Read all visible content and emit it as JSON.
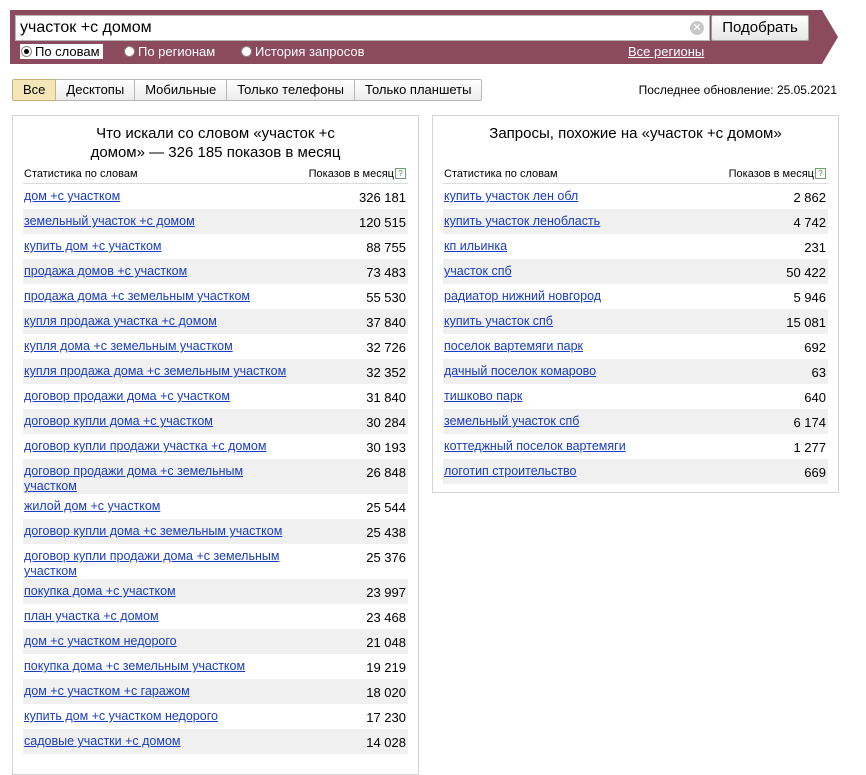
{
  "search": {
    "query": "участок +с домом",
    "button_label": "Подобрать",
    "radios": [
      {
        "label": "По словам",
        "selected": true
      },
      {
        "label": "По регионам",
        "selected": false
      },
      {
        "label": "История запросов",
        "selected": false
      }
    ],
    "all_regions_link": "Все регионы"
  },
  "tabs": [
    {
      "label": "Все",
      "active": true
    },
    {
      "label": "Десктопы",
      "active": false
    },
    {
      "label": "Мобильные",
      "active": false
    },
    {
      "label": "Только телефоны",
      "active": false
    },
    {
      "label": "Только планшеты",
      "active": false
    }
  ],
  "last_update": "Последнее обновление: 25.05.2021",
  "left_panel": {
    "title_line1": "Что искали со словом «участок +с",
    "title_line2": "домом» — 326 185 показов в месяц",
    "col_stats": "Статистика по словам",
    "col_shows": "Показов в месяц",
    "rows": [
      {
        "phrase": "дом +с участком",
        "count": "326 181"
      },
      {
        "phrase": "земельный участок +с домом",
        "count": "120 515"
      },
      {
        "phrase": "купить дом +с участком",
        "count": "88 755"
      },
      {
        "phrase": "продажа домов +с участком",
        "count": "73 483"
      },
      {
        "phrase": "продажа дома +с земельным участком",
        "count": "55 530"
      },
      {
        "phrase": "купля продажа участка +с домом",
        "count": "37 840"
      },
      {
        "phrase": "купля дома +с земельным участком",
        "count": "32 726"
      },
      {
        "phrase": "купля продажа дома +с земельным участком",
        "count": "32 352"
      },
      {
        "phrase": "договор продажи дома +с участком",
        "count": "31 840"
      },
      {
        "phrase": "договор купли дома +с участком",
        "count": "30 284"
      },
      {
        "phrase": "договор купли продажи участка +с домом",
        "count": "30 193"
      },
      {
        "phrase": "договор продажи дома +с земельным участком",
        "count": "26 848"
      },
      {
        "phrase": "жилой дом +с участком",
        "count": "25 544"
      },
      {
        "phrase": "договор купли дома +с земельным участком",
        "count": "25 438"
      },
      {
        "phrase": "договор купли продажи дома +с земельным участком",
        "count": "25 376"
      },
      {
        "phrase": "покупка дома +с участком",
        "count": "23 997"
      },
      {
        "phrase": "план участка +с домом",
        "count": "23 468"
      },
      {
        "phrase": "дом +с участком недорого",
        "count": "21 048"
      },
      {
        "phrase": "покупка дома +с земельным участком",
        "count": "19 219"
      },
      {
        "phrase": "дом +с участком +с гаражом",
        "count": "18 020"
      },
      {
        "phrase": "купить дом +с участком недорого",
        "count": "17 230"
      },
      {
        "phrase": "садовые участки +с домом",
        "count": "14 028"
      }
    ]
  },
  "right_panel": {
    "title": "Запросы, похожие на «участок +с домом»",
    "col_stats": "Статистика по словам",
    "col_shows": "Показов в месяц",
    "rows": [
      {
        "phrase": "купить участок лен обл",
        "count": "2 862"
      },
      {
        "phrase": "купить участок ленобласть",
        "count": "4 742"
      },
      {
        "phrase": "кп ильинка",
        "count": "231"
      },
      {
        "phrase": "участок спб",
        "count": "50 422"
      },
      {
        "phrase": "радиатор нижний новгород",
        "count": "5 946"
      },
      {
        "phrase": "купить участок спб",
        "count": "15 081"
      },
      {
        "phrase": "поселок вартемяги парк",
        "count": "692"
      },
      {
        "phrase": "дачный поселок комарово",
        "count": "63"
      },
      {
        "phrase": "тишково парк",
        "count": "640"
      },
      {
        "phrase": "земельный участок спб",
        "count": "6 174"
      },
      {
        "phrase": "коттеджный поселок вартемяги",
        "count": "1 277"
      },
      {
        "phrase": "логотип строительство",
        "count": "669"
      }
    ]
  },
  "colors": {
    "bar": "#8c4a5e",
    "link": "#1a3dc1",
    "row_alt": "#f0f0f0",
    "active_tab": "#f5e6b8"
  }
}
